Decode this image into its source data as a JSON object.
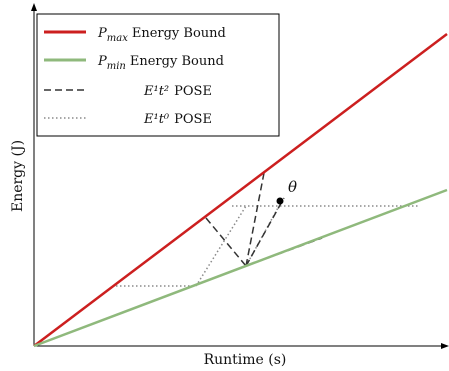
{
  "chart_data": {
    "type": "line",
    "title": "",
    "xlabel": "Runtime (s)",
    "ylabel": "Energy (J)",
    "grid": false,
    "legend_position": "top-left",
    "annotation": "θ",
    "series": [
      {
        "key": "pmax",
        "name": "P_max Energy Bound",
        "legend_math_base": "P",
        "legend_math_sub": "max",
        "legend_text": "Energy Bound",
        "color": "#cc1f1f",
        "style": "solid",
        "points": [
          [
            0,
            0
          ],
          [
            413,
            312
          ]
        ]
      },
      {
        "key": "pmin",
        "name": "P_min Energy Bound",
        "legend_math_base": "P",
        "legend_math_sub": "min",
        "legend_text": "Energy Bound",
        "color": "#8fb97c",
        "style": "solid",
        "points": [
          [
            0,
            0
          ],
          [
            413,
            156
          ]
        ]
      },
      {
        "key": "e1t2",
        "name": "E^1 t^2 POSE",
        "legend_math": "E¹t²",
        "legend_text": "POSE",
        "color": "#333333",
        "style": "dashed",
        "segments": [
          [
            [
              172,
              128
            ],
            [
              212,
              80
            ]
          ],
          [
            [
              212,
              80
            ],
            [
              250,
              148
            ]
          ],
          [
            [
              212,
              80
            ],
            [
              230,
              173
            ]
          ],
          [
            [
              212,
              80
            ],
            [
              288,
              108
            ]
          ]
        ]
      },
      {
        "key": "e1t0",
        "name": "E^1 t^0 POSE",
        "legend_math": "E¹t⁰",
        "legend_text": "POSE",
        "color": "#8a8a8a",
        "style": "dotted",
        "segments": [
          [
            [
              82,
              60
            ],
            [
              162,
              60
            ]
          ],
          [
            [
              162,
              60
            ],
            [
              212,
              140
            ]
          ],
          [
            [
              198,
              140
            ],
            [
              386,
              140
            ]
          ],
          [
            [
              212,
              80
            ],
            [
              245,
              140
            ]
          ]
        ]
      }
    ],
    "theta_point": [
      246,
      145
    ]
  }
}
